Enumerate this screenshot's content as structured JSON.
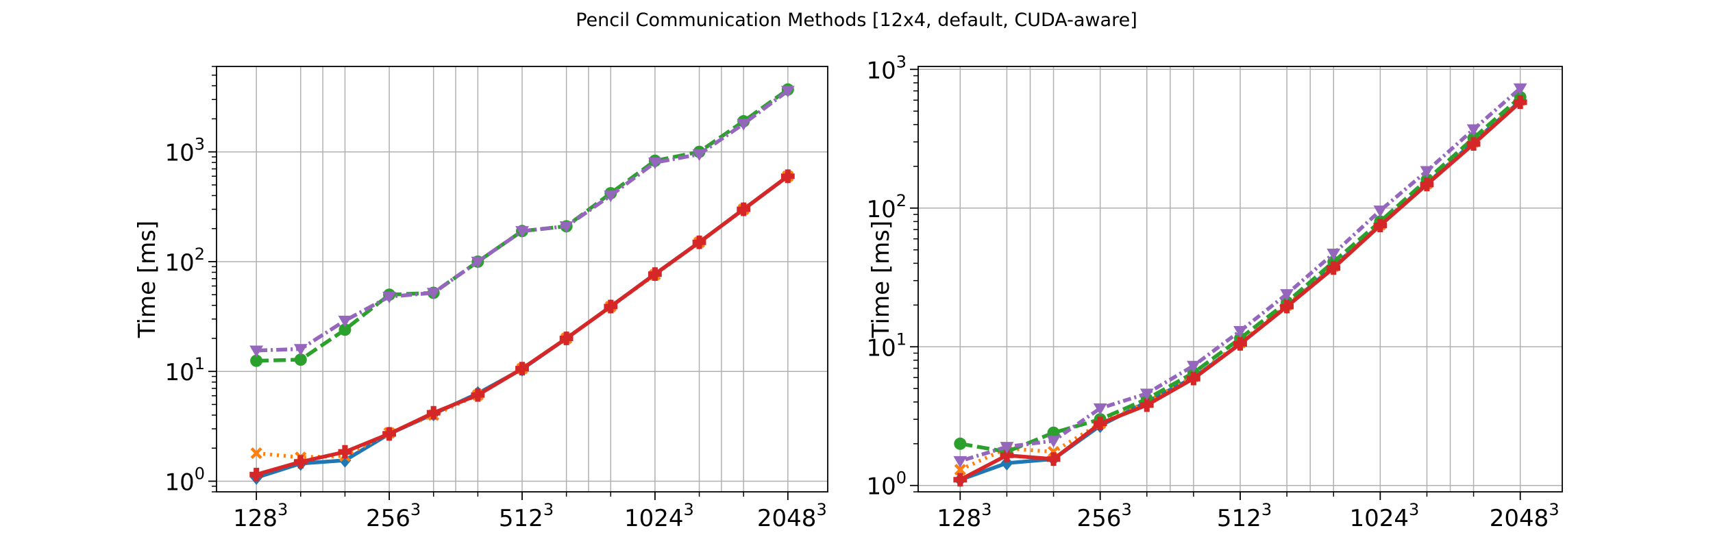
{
  "figure": {
    "title": "Pencil Communication Methods [12x4, default, CUDA-aware]"
  },
  "colors": {
    "blue": "#1f77b4",
    "orange": "#ff7f0e",
    "green": "#2ca02c",
    "red": "#d62728",
    "purple": "#9467bd",
    "grid": "#b0b0b0"
  },
  "chart_data": [
    {
      "type": "line",
      "title": "",
      "xlabel": "",
      "ylabel": "Time [ms]",
      "yscale": "log",
      "ylim": [
        0.8,
        6000
      ],
      "xlim": [
        6.7,
        11.3
      ],
      "grid": true,
      "x_ticks": [
        {
          "base": "128",
          "exp": "3",
          "v": 7
        },
        {
          "base": "256",
          "exp": "3",
          "v": 8
        },
        {
          "base": "512",
          "exp": "3",
          "v": 9
        },
        {
          "base": "1024",
          "exp": "3",
          "v": 10
        },
        {
          "base": "2048",
          "exp": "3",
          "v": 11
        }
      ],
      "y_ticks": [
        {
          "base": "10",
          "exp": "0",
          "v": 1
        },
        {
          "base": "10",
          "exp": "1",
          "v": 10
        },
        {
          "base": "10",
          "exp": "2",
          "v": 100
        },
        {
          "base": "10",
          "exp": "3",
          "v": 1000
        }
      ],
      "x": [
        7,
        7.5,
        8,
        8.5,
        9,
        9.5,
        10,
        10.5,
        11
      ],
      "x_minor": [
        7.3333,
        7.6667,
        8.3333,
        8.6667,
        9.3333,
        9.6667,
        10.3333,
        10.6667
      ],
      "series": [
        {
          "color": "blue",
          "dash": "",
          "marker": "diamond",
          "x": [
            7,
            7.3333,
            7.6667,
            8,
            8.3333,
            8.6667,
            9,
            9.3333,
            9.6667,
            10,
            10.3333,
            10.6667,
            11
          ],
          "y": [
            1.08,
            1.45,
            1.55,
            2.7,
            4.1,
            6.3,
            10.5,
            20,
            39,
            77,
            150,
            300,
            600
          ]
        },
        {
          "color": "orange",
          "dash": "3,7",
          "marker": "x",
          "x": [
            7,
            7.3333,
            7.6667,
            8,
            8.3333,
            8.6667,
            9,
            9.3333,
            9.6667,
            10,
            10.3333,
            10.6667,
            11
          ],
          "y": [
            1.8,
            1.65,
            1.7,
            2.75,
            4.0,
            6.1,
            10.6,
            20,
            39,
            76,
            150,
            300,
            600
          ]
        },
        {
          "color": "green",
          "dash": "18,7",
          "marker": "circle",
          "x": [
            7,
            7.3333,
            7.6667,
            8,
            8.3333,
            8.6667,
            9,
            9.3333,
            9.6667,
            10,
            10.3333,
            10.6667,
            11
          ],
          "y": [
            12.5,
            12.8,
            24,
            50,
            52,
            100,
            190,
            210,
            420,
            830,
            1000,
            1900,
            3700
          ]
        },
        {
          "color": "red",
          "dash": "",
          "marker": "plus",
          "x": [
            7,
            7.3333,
            7.6667,
            8,
            8.3333,
            8.6667,
            9,
            9.3333,
            9.6667,
            10,
            10.3333,
            10.6667,
            11
          ],
          "y": [
            1.15,
            1.5,
            1.85,
            2.7,
            4.2,
            6.1,
            10.6,
            20,
            39,
            77,
            150,
            300,
            600
          ]
        },
        {
          "color": "purple",
          "dash": "16,5,3,5",
          "marker": "triangle-down",
          "x": [
            7,
            7.3333,
            7.6667,
            8,
            8.3333,
            8.6667,
            9,
            9.3333,
            9.6667,
            10,
            10.3333,
            10.6667,
            11
          ],
          "y": [
            15.5,
            16,
            29,
            48,
            52,
            100,
            190,
            210,
            400,
            800,
            950,
            1800,
            3600
          ]
        }
      ]
    },
    {
      "type": "line",
      "title": "",
      "xlabel": "",
      "ylabel": "Time [ms]",
      "yscale": "log",
      "ylim": [
        0.9,
        1050
      ],
      "xlim": [
        6.7,
        11.3
      ],
      "grid": true,
      "x_ticks": [
        {
          "base": "128",
          "exp": "3",
          "v": 7
        },
        {
          "base": "256",
          "exp": "3",
          "v": 8
        },
        {
          "base": "512",
          "exp": "3",
          "v": 9
        },
        {
          "base": "1024",
          "exp": "3",
          "v": 10
        },
        {
          "base": "2048",
          "exp": "3",
          "v": 11
        }
      ],
      "y_ticks": [
        {
          "base": "10",
          "exp": "0",
          "v": 1
        },
        {
          "base": "10",
          "exp": "1",
          "v": 10
        },
        {
          "base": "10",
          "exp": "2",
          "v": 100
        },
        {
          "base": "10",
          "exp": "3",
          "v": 1000
        }
      ],
      "x": [
        7,
        7.5,
        8,
        8.5,
        9,
        9.5,
        10,
        10.5,
        11
      ],
      "x_minor": [
        7.3333,
        7.6667,
        8.3333,
        8.6667,
        9.3333,
        9.6667,
        10.3333,
        10.6667
      ],
      "series": [
        {
          "color": "blue",
          "dash": "",
          "marker": "diamond",
          "x": [
            7,
            7.3333,
            7.6667,
            8,
            8.3333,
            8.6667,
            9,
            9.3333,
            9.6667,
            10,
            10.3333,
            10.6667,
            11
          ],
          "y": [
            1.1,
            1.45,
            1.55,
            2.7,
            4.0,
            6.0,
            10.5,
            19.5,
            38,
            76,
            150,
            300,
            590
          ]
        },
        {
          "color": "orange",
          "dash": "3,7",
          "marker": "x",
          "x": [
            7,
            7.3333,
            7.6667,
            8,
            8.3333,
            8.6667,
            9,
            9.3333,
            9.6667,
            10,
            10.3333,
            10.6667,
            11
          ],
          "y": [
            1.3,
            1.85,
            1.75,
            2.8,
            4.0,
            6.1,
            10.7,
            20,
            38,
            76,
            150,
            300,
            600
          ]
        },
        {
          "color": "green",
          "dash": "18,7",
          "marker": "circle",
          "x": [
            7,
            7.3333,
            7.6667,
            8,
            8.3333,
            8.6667,
            9,
            9.3333,
            9.6667,
            10,
            10.3333,
            10.6667,
            11
          ],
          "y": [
            2.0,
            1.75,
            2.4,
            3.0,
            4.2,
            6.5,
            11.5,
            21,
            41,
            80,
            160,
            320,
            630
          ]
        },
        {
          "color": "red",
          "dash": "",
          "marker": "plus",
          "x": [
            7,
            7.3333,
            7.6667,
            8,
            8.3333,
            8.6667,
            9,
            9.3333,
            9.6667,
            10,
            10.3333,
            10.6667,
            11
          ],
          "y": [
            1.1,
            1.65,
            1.55,
            2.8,
            3.8,
            5.9,
            10.5,
            19.5,
            37,
            75,
            148,
            290,
            580
          ]
        },
        {
          "color": "purple",
          "dash": "3,5,12,5",
          "marker": "triangle-down",
          "x": [
            7,
            7.3333,
            7.6667,
            8,
            8.3333,
            8.6667,
            9,
            9.3333,
            9.6667,
            10,
            10.3333,
            10.6667,
            11
          ],
          "y": [
            1.5,
            1.9,
            2.1,
            3.6,
            4.6,
            7.3,
            13,
            24,
            47,
            96,
            185,
            370,
            730
          ]
        }
      ]
    }
  ]
}
